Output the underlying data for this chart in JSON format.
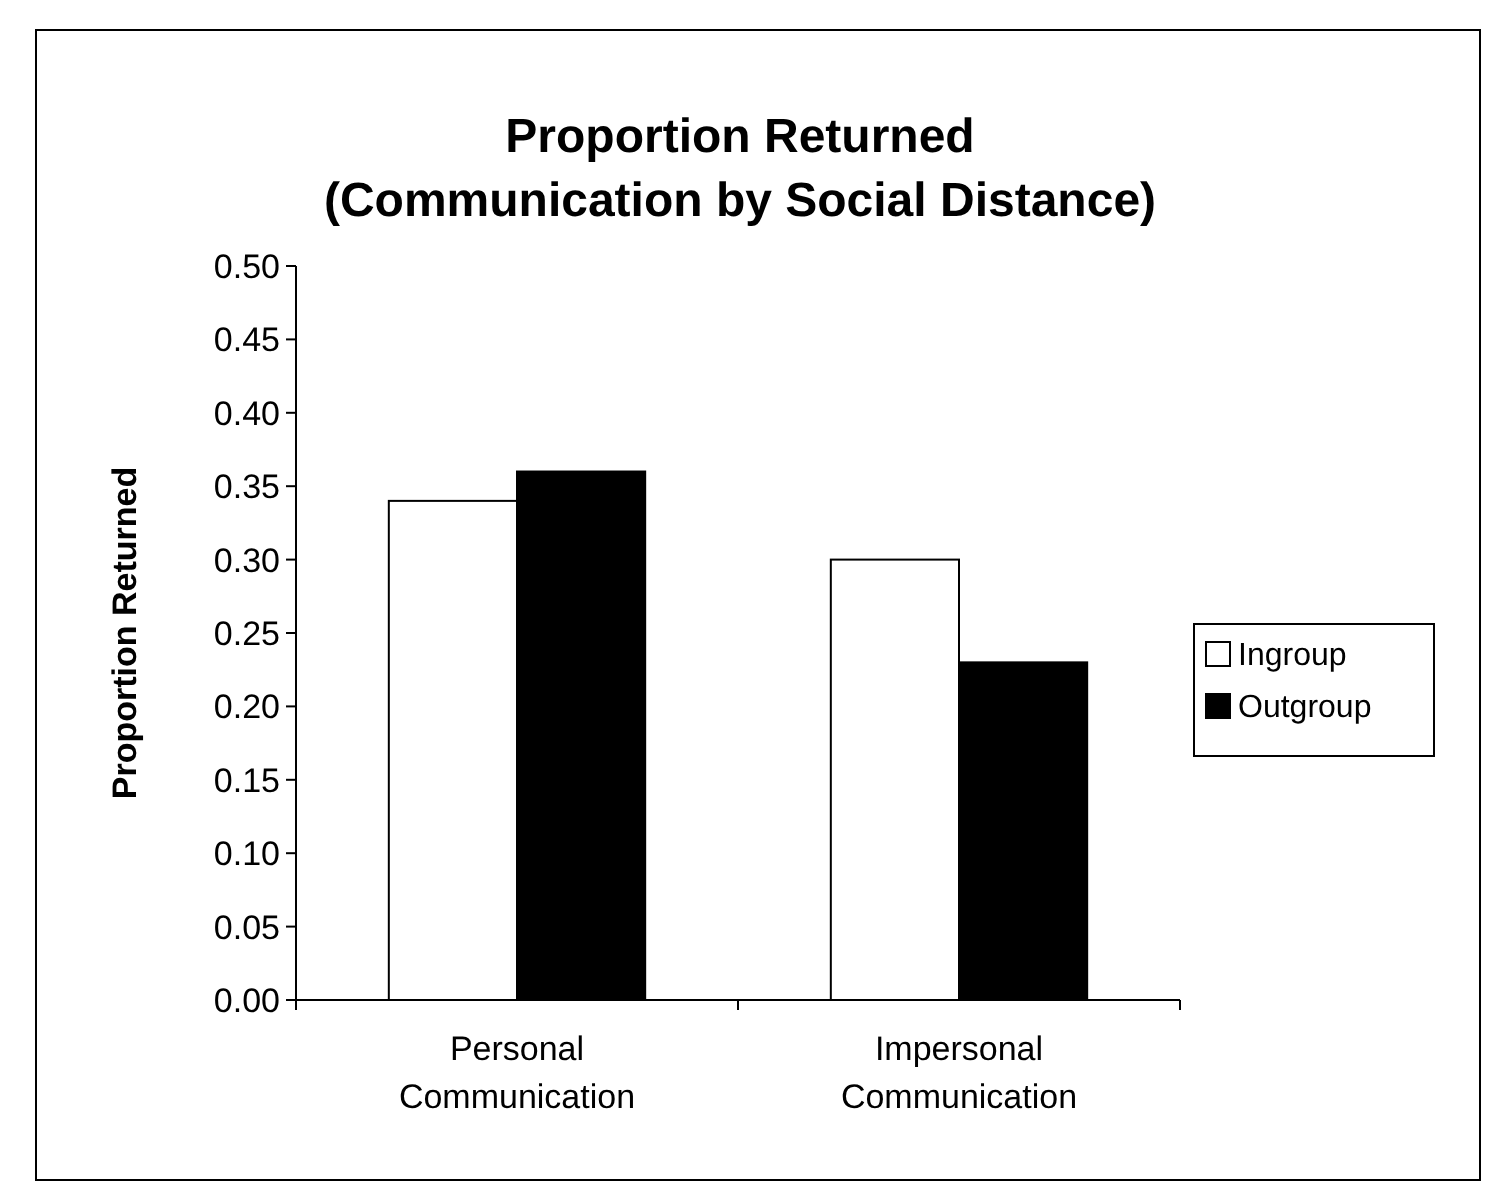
{
  "chart_data": {
    "type": "bar",
    "title": "Proportion Returned",
    "subtitle": "(Communication by Social Distance)",
    "ylabel": "Proportion Returned",
    "categories": [
      "Personal Communication",
      "Impersonal Communication"
    ],
    "series": [
      {
        "name": "Ingroup",
        "color": "#ffffff",
        "values": [
          0.34,
          0.3
        ]
      },
      {
        "name": "Outgroup",
        "color": "#000000",
        "values": [
          0.36,
          0.23
        ]
      }
    ],
    "ylim": [
      0,
      0.5
    ],
    "yticks": [
      {
        "value": 0,
        "label": "0.00"
      },
      {
        "value": 0.05,
        "label": "0.05"
      },
      {
        "value": 0.1,
        "label": "0.10"
      },
      {
        "value": 0.15,
        "label": "0.15"
      },
      {
        "value": 0.2,
        "label": "0.20"
      },
      {
        "value": 0.25,
        "label": "0.25"
      },
      {
        "value": 0.3,
        "label": "0.30"
      },
      {
        "value": 0.35,
        "label": "0.35"
      },
      {
        "value": 0.4,
        "label": "0.40"
      },
      {
        "value": 0.45,
        "label": "0.45"
      },
      {
        "value": 0.5,
        "label": "0.50"
      }
    ],
    "grid": false,
    "legend": "right"
  }
}
